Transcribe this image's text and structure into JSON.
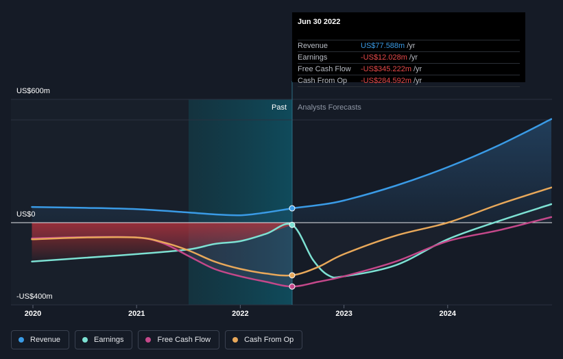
{
  "chart_data": {
    "type": "line",
    "y_ticks": [
      "US$600m",
      "US$0",
      "-US$400m"
    ],
    "x_ticks": [
      "2020",
      "2021",
      "2022",
      "2023",
      "2024"
    ],
    "ylim": [
      -400,
      600
    ],
    "divider_date": "Jun 30 2022",
    "past_label": "Past",
    "forecast_label": "Analysts Forecasts",
    "series": [
      {
        "name": "Revenue",
        "color": "#3a9be6",
        "points": [
          [
            2019.99,
            85
          ],
          [
            2020.5,
            80
          ],
          [
            2021.0,
            73
          ],
          [
            2021.5,
            55
          ],
          [
            2021.75,
            45
          ],
          [
            2022.0,
            40
          ],
          [
            2022.25,
            55
          ],
          [
            2022.5,
            77.588
          ],
          [
            2022.75,
            95
          ],
          [
            2023.0,
            120
          ],
          [
            2023.5,
            200
          ],
          [
            2024.0,
            300
          ],
          [
            2024.5,
            420
          ],
          [
            2025.0,
            560
          ]
        ]
      },
      {
        "name": "Earnings",
        "color": "#7de1d3",
        "points": [
          [
            2019.99,
            -210
          ],
          [
            2020.5,
            -190
          ],
          [
            2021.0,
            -170
          ],
          [
            2021.5,
            -145
          ],
          [
            2021.75,
            -115
          ],
          [
            2022.0,
            -100
          ],
          [
            2022.25,
            -60
          ],
          [
            2022.5,
            -12.028
          ],
          [
            2022.7,
            -200
          ],
          [
            2022.85,
            -285
          ],
          [
            2023.0,
            -290
          ],
          [
            2023.5,
            -230
          ],
          [
            2024.0,
            -90
          ],
          [
            2024.5,
            10
          ],
          [
            2025.0,
            100
          ]
        ]
      },
      {
        "name": "Free Cash Flow",
        "color": "#c4488a",
        "points": [
          [
            2019.99,
            -85
          ],
          [
            2020.5,
            -78
          ],
          [
            2021.0,
            -80
          ],
          [
            2021.25,
            -110
          ],
          [
            2021.5,
            -180
          ],
          [
            2021.75,
            -250
          ],
          [
            2022.0,
            -290
          ],
          [
            2022.25,
            -320
          ],
          [
            2022.5,
            -345.222
          ],
          [
            2022.75,
            -320
          ],
          [
            2023.0,
            -290
          ],
          [
            2023.5,
            -210
          ],
          [
            2024.0,
            -100
          ],
          [
            2024.5,
            -40
          ],
          [
            2025.0,
            30
          ]
        ]
      },
      {
        "name": "Cash From Op",
        "color": "#e8a85a",
        "points": [
          [
            2019.99,
            -90
          ],
          [
            2020.5,
            -80
          ],
          [
            2021.0,
            -80
          ],
          [
            2021.25,
            -105
          ],
          [
            2021.5,
            -150
          ],
          [
            2021.75,
            -210
          ],
          [
            2022.0,
            -250
          ],
          [
            2022.25,
            -275
          ],
          [
            2022.5,
            -284.592
          ],
          [
            2022.75,
            -240
          ],
          [
            2023.0,
            -170
          ],
          [
            2023.5,
            -70
          ],
          [
            2024.0,
            0
          ],
          [
            2024.5,
            100
          ],
          [
            2025.0,
            190
          ]
        ]
      }
    ],
    "grid": false,
    "legend_position": "bottom-left"
  },
  "tooltip": {
    "date": "Jun 30 2022",
    "rows": [
      {
        "label": "Revenue",
        "value": "US$77.588m",
        "unit": "/yr",
        "color": "#3a9be6"
      },
      {
        "label": "Earnings",
        "value": "-US$12.028m",
        "unit": "/yr",
        "color": "#e84a4a"
      },
      {
        "label": "Free Cash Flow",
        "value": "-US$345.222m",
        "unit": "/yr",
        "color": "#e84a4a"
      },
      {
        "label": "Cash From Op",
        "value": "-US$284.592m",
        "unit": "/yr",
        "color": "#e84a4a"
      }
    ]
  },
  "legend": [
    {
      "label": "Revenue",
      "color": "#3a9be6"
    },
    {
      "label": "Earnings",
      "color": "#7de1d3"
    },
    {
      "label": "Free Cash Flow",
      "color": "#c4488a"
    },
    {
      "label": "Cash From Op",
      "color": "#e8a85a"
    }
  ]
}
